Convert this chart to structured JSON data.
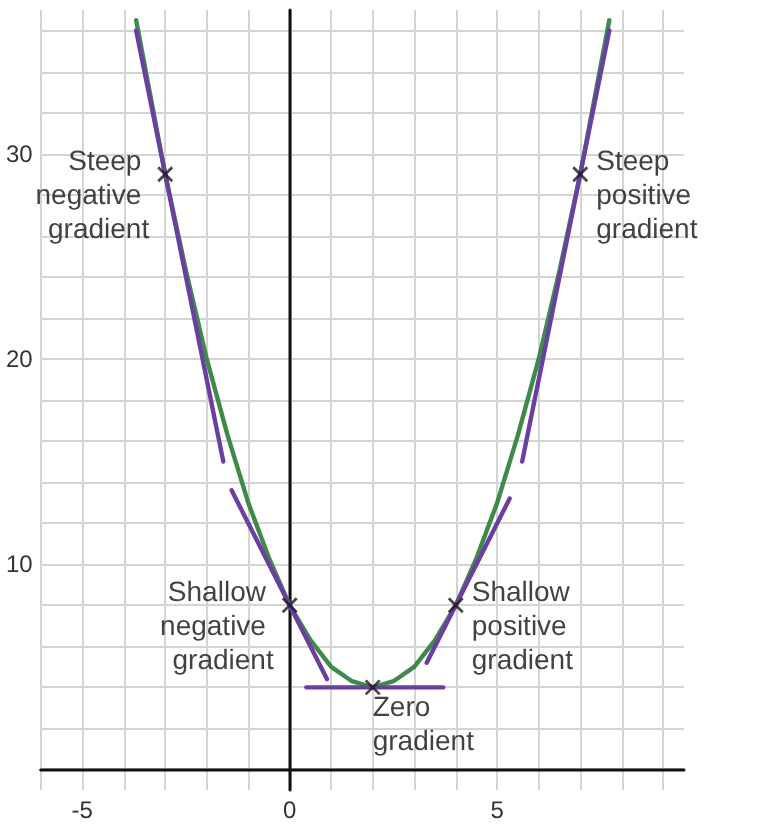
{
  "chart_data": {
    "type": "line",
    "xlim": [
      -6,
      9.5
    ],
    "ylim": [
      -1,
      37
    ],
    "xticks": [
      -5,
      0,
      5
    ],
    "yticks": [
      10,
      20,
      30
    ],
    "grid": true,
    "line_style": "solid",
    "series": [
      {
        "color": "#3f8a4a",
        "x": [
          -3.7,
          -3,
          -2.5,
          -2,
          -1.5,
          -1,
          -0.5,
          0,
          0.5,
          1,
          1.5,
          2,
          2.5,
          3,
          3.5,
          4,
          4.5,
          5,
          5.5,
          6,
          6.5,
          7,
          7.7
        ],
        "values": [
          36.5,
          29,
          24.3,
          20,
          16.3,
          13,
          10.3,
          8,
          6.3,
          5,
          4.3,
          4,
          4.3,
          5,
          6.3,
          8,
          10.3,
          13,
          16.3,
          20,
          24.3,
          29,
          36.5
        ],
        "marker": "none"
      },
      {
        "color": "#6b3fa0",
        "x": [
          -3.7,
          -1.6
        ],
        "values": [
          36,
          15
        ],
        "marker": "none"
      },
      {
        "color": "#6b3fa0",
        "x": [
          -1.4,
          0.9
        ],
        "values": [
          13.6,
          4.4
        ],
        "marker": "none"
      },
      {
        "color": "#6b3fa0",
        "x": [
          0.4,
          3.7
        ],
        "values": [
          4,
          4
        ],
        "marker": "none"
      },
      {
        "color": "#6b3fa0",
        "x": [
          3.3,
          5.3
        ],
        "values": [
          5.2,
          13.2
        ],
        "marker": "none"
      },
      {
        "color": "#6b3fa0",
        "x": [
          5.6,
          7.7
        ],
        "values": [
          15,
          36
        ],
        "marker": "none"
      },
      {
        "type": "scatter",
        "color": "#1a1a1a",
        "x": [
          -3,
          0,
          2,
          4,
          7
        ],
        "values": [
          29,
          8,
          4,
          8,
          29
        ],
        "marker": "cross"
      }
    ],
    "annotations": [
      {
        "text": "Steep negative gradient",
        "x": -3,
        "y": 29
      },
      {
        "text": "Shallow negative gradient",
        "x": 0,
        "y": 8
      },
      {
        "text": "Zero gradient",
        "x": 2,
        "y": 4
      },
      {
        "text": "Shallow positive gradient",
        "x": 4,
        "y": 8
      },
      {
        "text": "Steep positive gradient",
        "x": 7,
        "y": 29
      }
    ]
  }
}
